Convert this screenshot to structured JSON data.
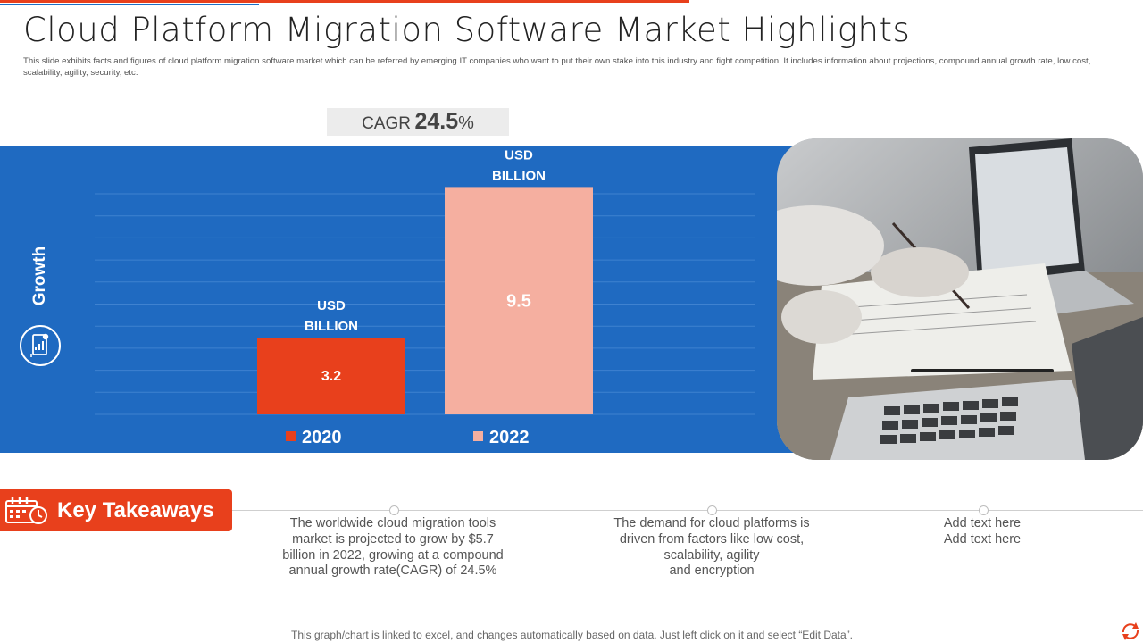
{
  "header": {
    "title": "Cloud Platform Migration Software Market Highlights",
    "subtitle": "This slide exhibits facts and figures of cloud platform migration  software market which can be referred by emerging IT  companies who want to put their own stake into this industry and fight competition. It includes information about projections, compound annual growth rate, low cost, scalability, agility, security, etc."
  },
  "cagr": {
    "label": "CAGR",
    "value": "24.5",
    "unit": "%"
  },
  "panel": {
    "axis_label": "Growth"
  },
  "chart_data": {
    "type": "bar",
    "categories": [
      "2020",
      "2022"
    ],
    "values": [
      3.2,
      9.5
    ],
    "value_labels": [
      "3.2",
      "9.5"
    ],
    "unit_label": "USD\nBILLION",
    "unit_lines": [
      "USD",
      "BILLION"
    ],
    "colors": [
      "#e8401c",
      "#f5afa0"
    ],
    "ylim": [
      0,
      10
    ],
    "grid": true,
    "title": "",
    "xlabel": "",
    "ylabel": "Growth"
  },
  "key_takeaways": {
    "label": "Key Takeaways",
    "items": [
      {
        "lines": [
          "The worldwide cloud migration tools",
          "market is projected to grow by $5.7",
          "billion in 2022, growing at a compound",
          "annual growth rate(CAGR) of 24.5%"
        ]
      },
      {
        "lines": [
          "The demand for cloud platforms is",
          "driven from factors like low cost,",
          "scalability, agility",
          "and encryption"
        ]
      },
      {
        "lines": [
          "Add text here",
          "Add text here"
        ]
      }
    ]
  },
  "footer": {
    "note": "This graph/chart is linked to excel,  and changes automatically based on data. Just left click on it and select “Edit Data”."
  },
  "colors": {
    "accent": "#e8401c",
    "panel_blue": "#1f6ac1",
    "bar_2022": "#f5afa0"
  }
}
